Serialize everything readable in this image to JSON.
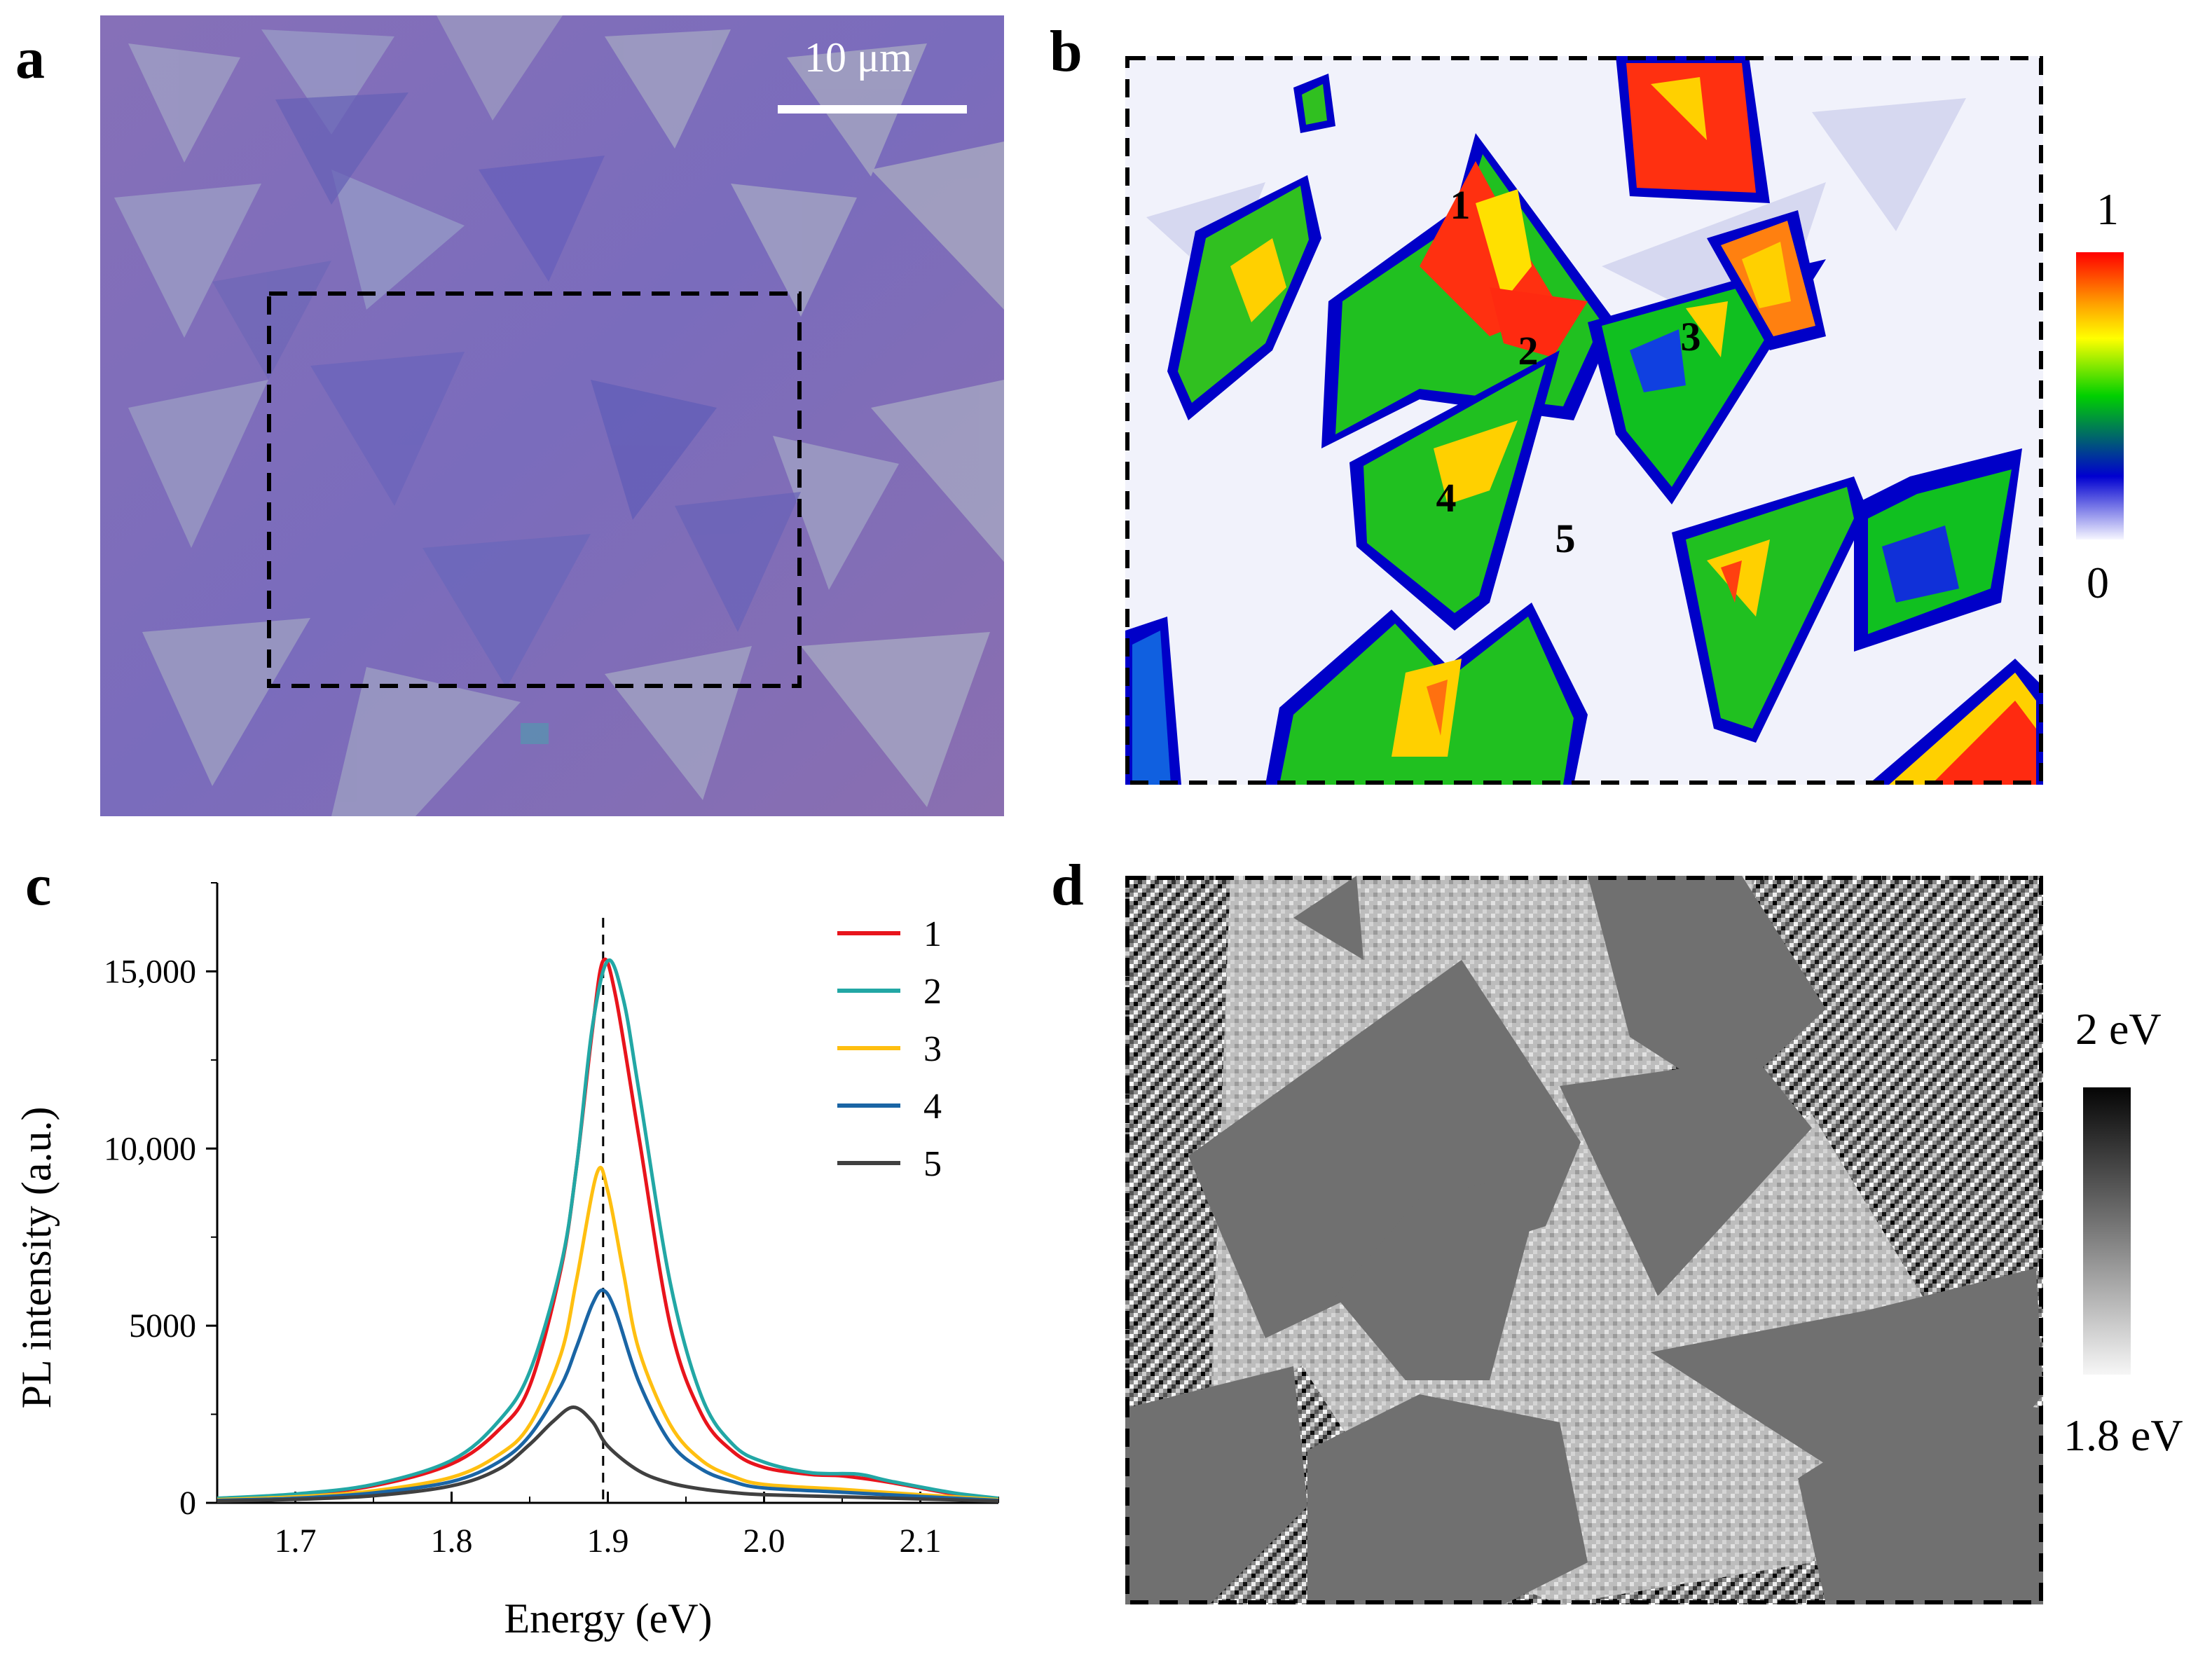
{
  "figure": {
    "panels": {
      "a": {
        "label": "a",
        "scale_bar_text": "10 μm",
        "colors": {
          "substrate": "#7f6bb8",
          "flake_light": "#9c9cc0",
          "flake_dark": "#6a62b6"
        }
      },
      "b": {
        "label": "b",
        "region_labels": [
          "1",
          "2",
          "3",
          "4",
          "5"
        ],
        "colorbar_max": "1",
        "colorbar_min": "0",
        "colors": {
          "low": "#f4f4fb",
          "mid_blue": "#0000d0",
          "green": "#00c000",
          "yellow": "#ffff00",
          "red": "#ff0000"
        }
      },
      "c": {
        "label": "c"
      },
      "d": {
        "label": "d",
        "colorbar_max": "2 eV",
        "colorbar_min": "1.8 eV",
        "colors": {
          "bg": "#7d7d7d",
          "flake": "#6f6f6f",
          "bilayer": "#b9b9b9"
        }
      }
    }
  },
  "chart_data": {
    "type": "line",
    "title": "",
    "xlabel": "Energy (eV)",
    "ylabel": "PL intensity (a.u.)",
    "xlim": [
      1.65,
      2.15
    ],
    "ylim": [
      0,
      17500
    ],
    "xticks": [
      1.7,
      1.8,
      1.9,
      2.0,
      2.1
    ],
    "xtick_labels": [
      "1.7",
      "1.8",
      "1.9",
      "2.0",
      "2.1"
    ],
    "yticks": [
      0,
      5000,
      10000,
      15000
    ],
    "ytick_labels": [
      "0",
      "5000",
      "10,000",
      "15,000"
    ],
    "reference_line_x": 1.897,
    "legend_position": "top-right",
    "series": [
      {
        "name": "1",
        "color": "#e8141c",
        "x": [
          1.65,
          1.7,
          1.75,
          1.8,
          1.83,
          1.85,
          1.87,
          1.88,
          1.89,
          1.897,
          1.905,
          1.92,
          1.94,
          1.96,
          1.98,
          2.0,
          2.03,
          2.05,
          2.08,
          2.12,
          2.15
        ],
        "values": [
          120,
          230,
          480,
          1100,
          2050,
          3300,
          6600,
          9500,
          13300,
          15300,
          14300,
          10300,
          5000,
          2500,
          1450,
          1000,
          800,
          760,
          580,
          260,
          110
        ]
      },
      {
        "name": "2",
        "color": "#22a7a5",
        "x": [
          1.65,
          1.7,
          1.75,
          1.8,
          1.83,
          1.85,
          1.87,
          1.88,
          1.89,
          1.9,
          1.91,
          1.92,
          1.94,
          1.96,
          1.98,
          2.0,
          2.03,
          2.06,
          2.08,
          2.12,
          2.15
        ],
        "values": [
          130,
          250,
          520,
          1200,
          2300,
          3700,
          6700,
          9500,
          13400,
          15300,
          14200,
          11600,
          6200,
          3000,
          1650,
          1150,
          850,
          810,
          620,
          290,
          130
        ]
      },
      {
        "name": "3",
        "color": "#ffbf10",
        "x": [
          1.65,
          1.7,
          1.75,
          1.8,
          1.83,
          1.85,
          1.87,
          1.88,
          1.893,
          1.9,
          1.91,
          1.92,
          1.94,
          1.96,
          1.98,
          2.0,
          2.05,
          2.1,
          2.15
        ],
        "values": [
          90,
          170,
          340,
          720,
          1350,
          2200,
          4200,
          6300,
          9300,
          8800,
          6500,
          4300,
          2200,
          1200,
          750,
          520,
          380,
          230,
          90
        ]
      },
      {
        "name": "4",
        "color": "#1a65a5",
        "x": [
          1.65,
          1.7,
          1.75,
          1.8,
          1.83,
          1.85,
          1.87,
          1.88,
          1.89,
          1.897,
          1.905,
          1.92,
          1.94,
          1.96,
          1.98,
          2.0,
          2.05,
          2.1,
          2.15
        ],
        "values": [
          70,
          130,
          280,
          600,
          1150,
          1900,
          3300,
          4400,
          5600,
          6000,
          5400,
          3400,
          1700,
          950,
          600,
          420,
          300,
          180,
          70
        ]
      },
      {
        "name": "5",
        "color": "#404040",
        "x": [
          1.65,
          1.7,
          1.75,
          1.8,
          1.83,
          1.85,
          1.865,
          1.878,
          1.89,
          1.9,
          1.92,
          1.94,
          1.96,
          1.98,
          2.0,
          2.05,
          2.1,
          2.15
        ],
        "values": [
          50,
          100,
          200,
          480,
          950,
          1650,
          2300,
          2700,
          2300,
          1600,
          900,
          560,
          390,
          290,
          230,
          170,
          110,
          50
        ]
      }
    ]
  }
}
